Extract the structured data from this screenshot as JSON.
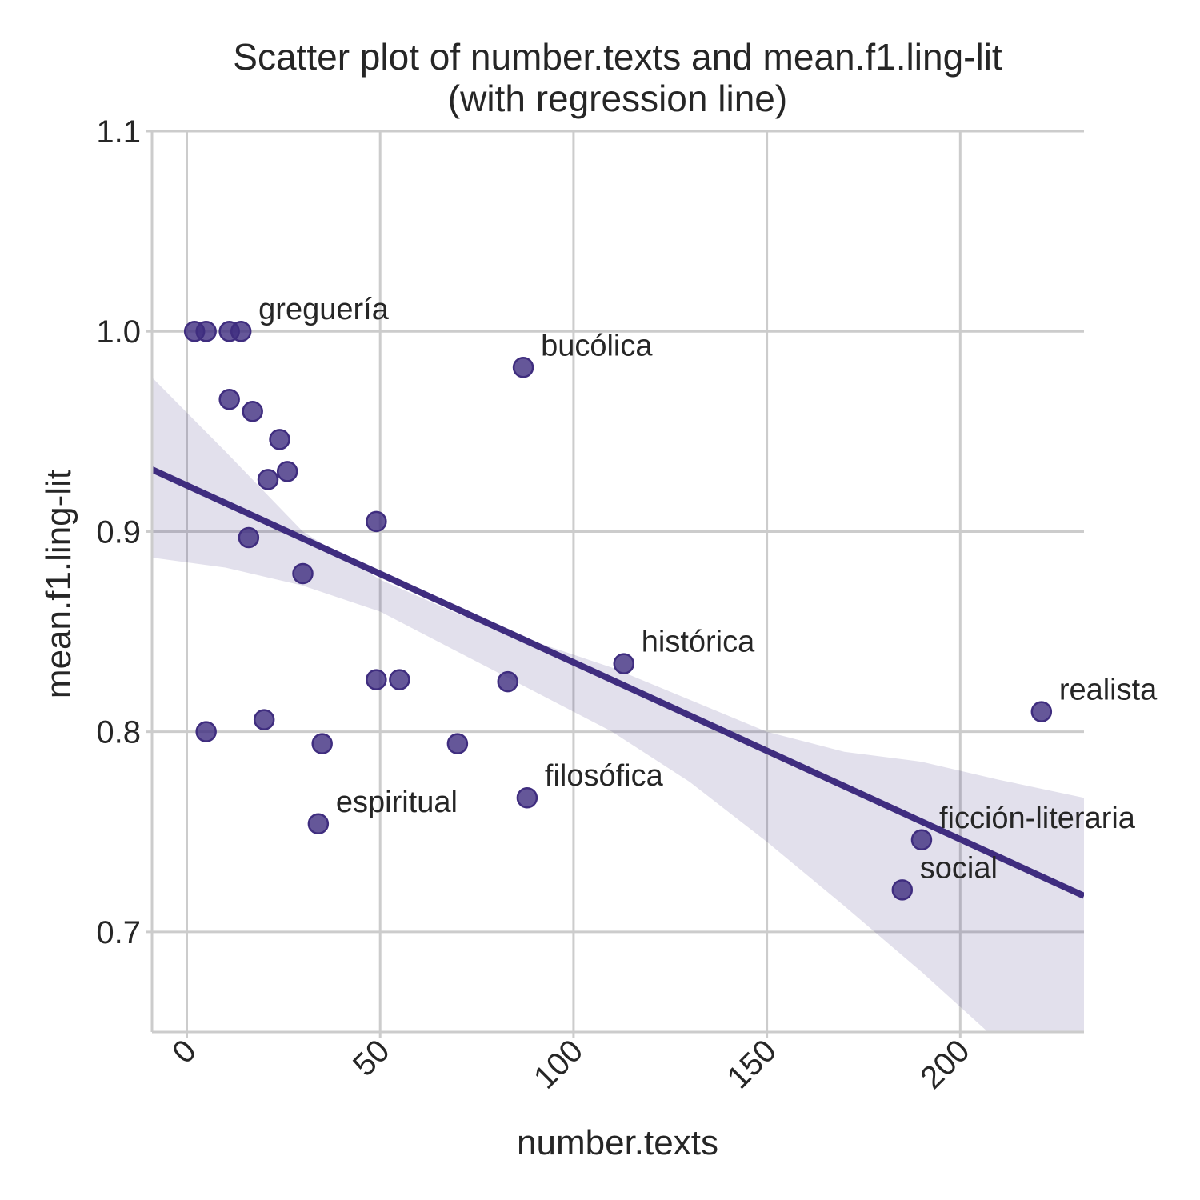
{
  "colors": {
    "point": "#3f2d7f",
    "line": "#3f2d7f",
    "band": "#3f2d7f",
    "grid": "#cccccc",
    "text": "#262626"
  },
  "chart_data": {
    "type": "scatter",
    "title": [
      "Scatter plot of number.texts and mean.f1.ling-lit",
      "(with regression line)"
    ],
    "xlabel": "number.texts",
    "ylabel": "mean.f1.ling-lit",
    "xlim": [
      -9,
      232
    ],
    "ylim": [
      0.65,
      1.1
    ],
    "xticks": [
      0,
      50,
      100,
      150,
      200
    ],
    "xtick_labels": [
      "0",
      "50",
      "100",
      "150",
      "200"
    ],
    "yticks": [
      0.7,
      0.8,
      0.9,
      1.0,
      1.1
    ],
    "ytick_labels": [
      "0.7",
      "0.8",
      "0.9",
      "1.0",
      "1.1"
    ],
    "grid": true,
    "points": [
      {
        "x": 2,
        "y": 1.0,
        "label": ""
      },
      {
        "x": 5,
        "y": 1.0,
        "label": ""
      },
      {
        "x": 11,
        "y": 1.0,
        "label": ""
      },
      {
        "x": 14,
        "y": 1.0,
        "label": "greguería"
      },
      {
        "x": 87,
        "y": 0.982,
        "label": "bucólica"
      },
      {
        "x": 11,
        "y": 0.966,
        "label": ""
      },
      {
        "x": 17,
        "y": 0.96,
        "label": ""
      },
      {
        "x": 24,
        "y": 0.946,
        "label": ""
      },
      {
        "x": 26,
        "y": 0.93,
        "label": ""
      },
      {
        "x": 21,
        "y": 0.926,
        "label": ""
      },
      {
        "x": 49,
        "y": 0.905,
        "label": ""
      },
      {
        "x": 16,
        "y": 0.897,
        "label": ""
      },
      {
        "x": 30,
        "y": 0.879,
        "label": ""
      },
      {
        "x": 113,
        "y": 0.834,
        "label": "histórica"
      },
      {
        "x": 49,
        "y": 0.826,
        "label": ""
      },
      {
        "x": 55,
        "y": 0.826,
        "label": ""
      },
      {
        "x": 83,
        "y": 0.825,
        "label": ""
      },
      {
        "x": 221,
        "y": 0.81,
        "label": "realista"
      },
      {
        "x": 20,
        "y": 0.806,
        "label": ""
      },
      {
        "x": 5,
        "y": 0.8,
        "label": ""
      },
      {
        "x": 35,
        "y": 0.794,
        "label": ""
      },
      {
        "x": 70,
        "y": 0.794,
        "label": ""
      },
      {
        "x": 88,
        "y": 0.767,
        "label": "filosófica"
      },
      {
        "x": 34,
        "y": 0.754,
        "label": "espiritual"
      },
      {
        "x": 190,
        "y": 0.746,
        "label": "ficción-literaria"
      },
      {
        "x": 185,
        "y": 0.721,
        "label": "social"
      }
    ],
    "regression": {
      "x": [
        -9,
        232
      ],
      "y": [
        0.931,
        0.718
      ]
    },
    "confidence_band": {
      "x": [
        -9,
        10,
        30,
        50,
        70,
        90,
        110,
        130,
        150,
        170,
        190,
        210,
        232
      ],
      "upper": [
        0.977,
        0.94,
        0.9,
        0.876,
        0.859,
        0.845,
        0.832,
        0.816,
        0.8,
        0.79,
        0.785,
        0.776,
        0.767
      ],
      "lower": [
        0.887,
        0.882,
        0.873,
        0.86,
        0.84,
        0.82,
        0.8,
        0.775,
        0.745,
        0.713,
        0.68,
        0.645,
        0.61
      ]
    }
  }
}
